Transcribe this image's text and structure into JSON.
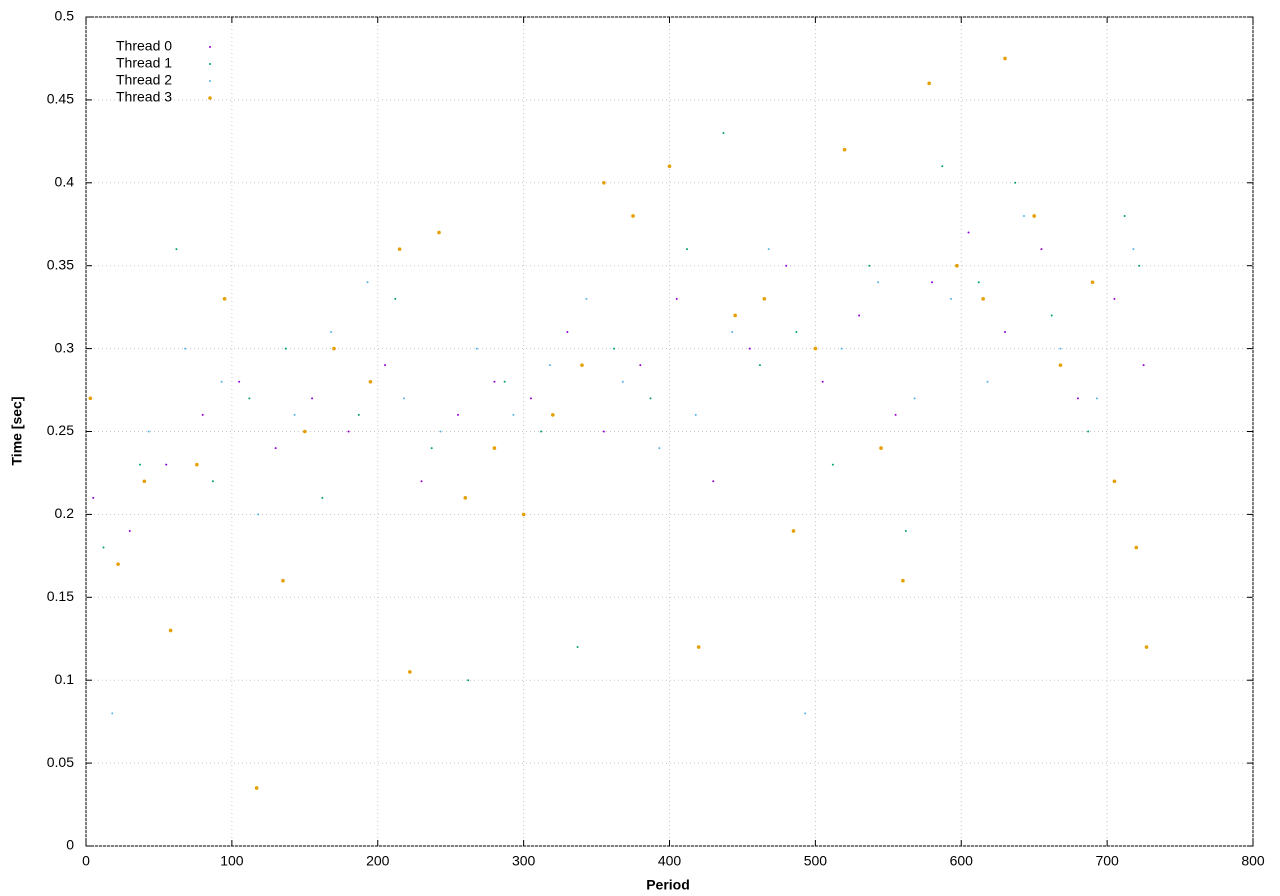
{
  "chart_data": {
    "type": "scatter",
    "xlabel": "Period",
    "ylabel": "Time [sec]",
    "xlim": [
      0,
      800
    ],
    "ylim": [
      0,
      0.5
    ],
    "xticks": [
      0,
      100,
      200,
      300,
      400,
      500,
      600,
      700,
      800
    ],
    "yticks": [
      0,
      0.05,
      0.1,
      0.15,
      0.2,
      0.25,
      0.3,
      0.35,
      0.4,
      0.45,
      0.5
    ],
    "grid": true,
    "legend": "top-left",
    "series": [
      {
        "name": "Thread 0",
        "color": "#9400d3",
        "x": [
          5,
          30,
          55,
          80,
          105,
          130,
          155,
          180,
          205,
          230,
          255,
          280,
          305,
          330,
          355,
          380,
          405,
          430,
          455,
          480,
          505,
          530,
          555,
          580,
          605,
          630,
          655,
          680,
          705,
          725
        ],
        "values": [
          0.21,
          0.19,
          0.23,
          0.26,
          0.28,
          0.24,
          0.27,
          0.25,
          0.29,
          0.22,
          0.26,
          0.28,
          0.27,
          0.31,
          0.25,
          0.29,
          0.33,
          0.22,
          0.3,
          0.35,
          0.28,
          0.32,
          0.26,
          0.34,
          0.37,
          0.31,
          0.36,
          0.27,
          0.33,
          0.29
        ]
      },
      {
        "name": "Thread 1",
        "color": "#009e73",
        "x": [
          12,
          37,
          62,
          87,
          112,
          137,
          162,
          187,
          212,
          237,
          262,
          287,
          312,
          337,
          362,
          387,
          412,
          437,
          462,
          487,
          512,
          537,
          562,
          587,
          612,
          637,
          662,
          687,
          712,
          722
        ],
        "values": [
          0.18,
          0.23,
          0.36,
          0.22,
          0.27,
          0.3,
          0.21,
          0.26,
          0.33,
          0.24,
          0.1,
          0.28,
          0.25,
          0.12,
          0.3,
          0.27,
          0.36,
          0.43,
          0.29,
          0.31,
          0.23,
          0.35,
          0.19,
          0.41,
          0.34,
          0.4,
          0.32,
          0.25,
          0.38,
          0.35
        ]
      },
      {
        "name": "Thread 2",
        "color": "#56b4e9",
        "x": [
          18,
          43,
          68,
          93,
          118,
          143,
          168,
          193,
          218,
          243,
          268,
          293,
          318,
          343,
          368,
          393,
          418,
          443,
          468,
          493,
          518,
          543,
          568,
          593,
          618,
          643,
          668,
          693,
          718
        ],
        "values": [
          0.08,
          0.25,
          0.3,
          0.28,
          0.2,
          0.26,
          0.31,
          0.34,
          0.27,
          0.25,
          0.3,
          0.26,
          0.29,
          0.33,
          0.28,
          0.24,
          0.26,
          0.31,
          0.36,
          0.08,
          0.3,
          0.34,
          0.27,
          0.33,
          0.28,
          0.38,
          0.3,
          0.27,
          0.36
        ]
      },
      {
        "name": "Thread 3",
        "color": "#e69f00",
        "x": [
          3,
          22,
          40,
          58,
          76,
          95,
          117,
          135,
          150,
          170,
          195,
          215,
          222,
          242,
          260,
          280,
          300,
          320,
          340,
          355,
          375,
          400,
          420,
          445,
          465,
          485,
          500,
          520,
          545,
          560,
          578,
          597,
          615,
          630,
          650,
          668,
          690,
          705,
          720,
          727
        ],
        "values": [
          0.27,
          0.17,
          0.22,
          0.13,
          0.23,
          0.33,
          0.035,
          0.16,
          0.25,
          0.3,
          0.28,
          0.36,
          0.105,
          0.37,
          0.21,
          0.24,
          0.2,
          0.26,
          0.29,
          0.4,
          0.38,
          0.41,
          0.12,
          0.32,
          0.33,
          0.19,
          0.3,
          0.42,
          0.24,
          0.16,
          0.46,
          0.35,
          0.33,
          0.475,
          0.38,
          0.29,
          0.34,
          0.22,
          0.18,
          0.12
        ]
      }
    ]
  }
}
